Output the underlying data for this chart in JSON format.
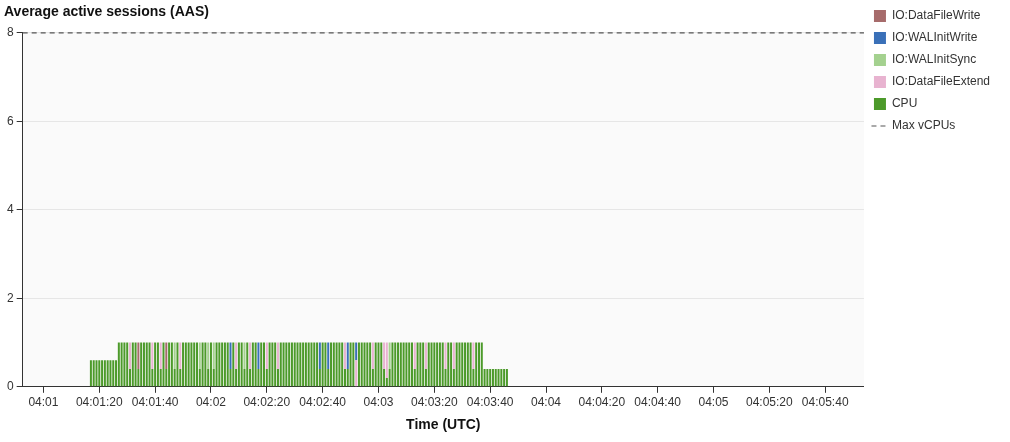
{
  "chart_data": {
    "type": "bar",
    "title": "Average active sessions (AAS)",
    "xlabel": "Time (UTC)",
    "stacked": true,
    "grid": "y",
    "legend": "right",
    "x": [
      4.021389,
      4.021667,
      4.021944,
      4.022222,
      4.0225,
      4.022778,
      4.023056,
      4.023333,
      4.023611,
      4.023889,
      4.024167,
      4.024444,
      4.024722,
      4.025,
      4.025278,
      4.025556,
      4.025833,
      4.026111,
      4.026389,
      4.026667,
      4.026944,
      4.027222,
      4.0275,
      4.027778,
      4.028056,
      4.028333,
      4.028611,
      4.028889,
      4.029167,
      4.029444,
      4.029722,
      4.03,
      4.030278,
      4.030556,
      4.030833,
      4.031111,
      4.031389,
      4.031667,
      4.031944,
      4.032222,
      4.0325,
      4.032778,
      4.033056,
      4.033333,
      4.033611,
      4.033889,
      4.034167,
      4.034444,
      4.034722,
      4.035,
      4.035278,
      4.035556,
      4.035833,
      4.036111,
      4.036389,
      4.036667,
      4.036944,
      4.037222,
      4.0375,
      4.037778,
      4.038056,
      4.038333,
      4.038611,
      4.038889,
      4.039167,
      4.039444,
      4.039722,
      4.04,
      4.040278,
      4.040556,
      4.040833,
      4.041111,
      4.041389,
      4.041667,
      4.041944,
      4.042222,
      4.0425,
      4.042778,
      4.043056,
      4.043333,
      4.043611,
      4.043889,
      4.044167,
      4.044444,
      4.044722,
      4.045,
      4.045278,
      4.045556,
      4.045833,
      4.046111,
      4.046389,
      4.046667,
      4.046944,
      4.047222,
      4.0475,
      4.047778,
      4.048056,
      4.048333,
      4.048611,
      4.048889,
      4.049167,
      4.049444,
      4.049722,
      4.05,
      4.050278,
      4.050556,
      4.050833,
      4.051111,
      4.051389,
      4.051667,
      4.051944,
      4.052222,
      4.0525,
      4.052778,
      4.053056,
      4.053333,
      4.053611,
      4.053889,
      4.054167,
      4.054444,
      4.054722,
      4.055,
      4.055278,
      4.055556,
      4.055833,
      4.056111,
      4.056389,
      4.056667,
      4.056944,
      4.057222,
      4.0575,
      4.057778,
      4.058056,
      4.058333,
      4.058611,
      4.058889,
      4.059167,
      4.059444,
      4.059722,
      4.06,
      4.060278,
      4.060556,
      4.060833,
      4.061111,
      4.061389,
      4.061667,
      4.061944,
      4.062222,
      4.0625,
      4.062778
    ],
    "xlim": [
      4.0146,
      4.0983
    ],
    "xticks": [
      {
        "value": 4.016667,
        "label": "04:01"
      },
      {
        "value": 4.022222,
        "label": "04:01:20"
      },
      {
        "value": 4.027778,
        "label": "04:01:40"
      },
      {
        "value": 4.033333,
        "label": "04:02"
      },
      {
        "value": 4.038889,
        "label": "04:02:20"
      },
      {
        "value": 4.044444,
        "label": "04:02:40"
      },
      {
        "value": 4.05,
        "label": "04:03"
      },
      {
        "value": 4.055556,
        "label": "04:03:20"
      },
      {
        "value": 4.061111,
        "label": "04:03:40"
      },
      {
        "value": 4.066667,
        "label": "04:04"
      },
      {
        "value": 4.072222,
        "label": "04:04:20"
      },
      {
        "value": 4.077778,
        "label": "04:04:40"
      },
      {
        "value": 4.083333,
        "label": "04:05"
      },
      {
        "value": 4.088889,
        "label": "04:05:20"
      },
      {
        "value": 4.094444,
        "label": "04:05:40"
      }
    ],
    "ylim": [
      0,
      8
    ],
    "yticks": [
      0,
      2,
      4,
      6,
      8
    ],
    "ref_lines": [
      {
        "axis": "y",
        "value": 8,
        "label": "Max vCPUs",
        "color": "#555555",
        "line_style": "dashed"
      }
    ],
    "series": [
      {
        "name": "CPU",
        "color": "#4c9a2a",
        "values": [
          0.6,
          0.6,
          0.6,
          0.6,
          0.6,
          0.6,
          0.6,
          0.6,
          0.6,
          0.6,
          1,
          1,
          1,
          1,
          0.4,
          1,
          1,
          0.4,
          1,
          1,
          1,
          1,
          0.4,
          1,
          1,
          0.4,
          1,
          0.4,
          1,
          1,
          0.4,
          1,
          0.4,
          1,
          1,
          1,
          1,
          1,
          1,
          0.4,
          1,
          1,
          0.4,
          1,
          0.4,
          1,
          1,
          1,
          1,
          1,
          0.4,
          1,
          0.4,
          1,
          1,
          0.4,
          1,
          0.4,
          1,
          1,
          0.4,
          1,
          1,
          0.4,
          1,
          1,
          1,
          0.4,
          1,
          1,
          1,
          1,
          1,
          1,
          1,
          1,
          1,
          1,
          1,
          1,
          1,
          1,
          0.4,
          1,
          1,
          0.4,
          1,
          1,
          1,
          1,
          1,
          0.4,
          0.4,
          1,
          1,
          null,
          1,
          1,
          1,
          1,
          1,
          0.4,
          1,
          1,
          1,
          0.4,
          0.2,
          0.4,
          1,
          1,
          1,
          1,
          1,
          1,
          1,
          1,
          0.4,
          1,
          1,
          1,
          0.4,
          1,
          1,
          1,
          1,
          1,
          1,
          0.4,
          1,
          1,
          0.4,
          1,
          1,
          1,
          1,
          1,
          1,
          0.4,
          1,
          1,
          1,
          0.4,
          0.4,
          0.4,
          0.4,
          0.4,
          0.4,
          0.4,
          0.4,
          0.4
        ]
      },
      {
        "name": "IO:DataFileExtend",
        "color": "#e8b3d0",
        "values": [
          null,
          null,
          null,
          null,
          null,
          null,
          null,
          null,
          null,
          null,
          null,
          null,
          null,
          null,
          0.6,
          null,
          null,
          null,
          null,
          null,
          null,
          null,
          0.6,
          null,
          null,
          0.6,
          null,
          null,
          null,
          null,
          null,
          null,
          0.6,
          null,
          null,
          null,
          null,
          null,
          null,
          null,
          null,
          null,
          null,
          null,
          null,
          null,
          null,
          null,
          null,
          null,
          null,
          null,
          0.6,
          null,
          null,
          null,
          null,
          0.6,
          null,
          null,
          null,
          null,
          null,
          0.6,
          null,
          null,
          null,
          0.6,
          null,
          null,
          null,
          null,
          null,
          null,
          null,
          null,
          null,
          null,
          null,
          null,
          null,
          null,
          null,
          null,
          null,
          null,
          null,
          null,
          null,
          null,
          null,
          0.6,
          null,
          null,
          null,
          0.6,
          null,
          null,
          null,
          null,
          null,
          0.6,
          null,
          null,
          null,
          0.6,
          0.8,
          null,
          null,
          null,
          null,
          null,
          null,
          null,
          null,
          null,
          0.6,
          null,
          null,
          null,
          0.6,
          null,
          null,
          null,
          null,
          null,
          null,
          0.6,
          null,
          null,
          0.6,
          null,
          null,
          null,
          null,
          null,
          null,
          0.6,
          null,
          null,
          null,
          null,
          null,
          null,
          null,
          null,
          null,
          null,
          null,
          null
        ]
      },
      {
        "name": "IO:WALInitSync",
        "color": "#a4d18f",
        "values": [
          null,
          null,
          null,
          null,
          null,
          null,
          null,
          null,
          null,
          null,
          null,
          null,
          null,
          null,
          null,
          null,
          null,
          null,
          null,
          null,
          null,
          null,
          null,
          null,
          null,
          null,
          null,
          null,
          null,
          null,
          0.6,
          null,
          null,
          null,
          null,
          null,
          null,
          null,
          null,
          0.6,
          null,
          null,
          0.6,
          null,
          0.6,
          null,
          null,
          null,
          null,
          null,
          null,
          null,
          null,
          null,
          null,
          0.6,
          null,
          null,
          null,
          null,
          null,
          null,
          null,
          null,
          null,
          null,
          null,
          null,
          null,
          null,
          null,
          null,
          null,
          null,
          null,
          null,
          null,
          null,
          null,
          null,
          null,
          null,
          null,
          null,
          null,
          null,
          null,
          null,
          null,
          null,
          null,
          null,
          null,
          null,
          null,
          null,
          null,
          null,
          null,
          null,
          null,
          null,
          null,
          null,
          null,
          null,
          null,
          0.6,
          null,
          null,
          null,
          null,
          null,
          null,
          null,
          null,
          null,
          null,
          null,
          null,
          null,
          null,
          null,
          null,
          null,
          null,
          null,
          null,
          null,
          null,
          null,
          null,
          null,
          null,
          null,
          null,
          null,
          null,
          null,
          null,
          null,
          null,
          null,
          null,
          null,
          null,
          null,
          null,
          null,
          null
        ]
      },
      {
        "name": "IO:WALInitWrite",
        "color": "#3a70b8",
        "values": [
          null,
          null,
          null,
          null,
          null,
          null,
          null,
          null,
          null,
          null,
          null,
          null,
          null,
          null,
          null,
          null,
          null,
          null,
          null,
          null,
          null,
          null,
          null,
          null,
          null,
          null,
          null,
          null,
          null,
          null,
          null,
          null,
          null,
          null,
          null,
          null,
          null,
          null,
          null,
          null,
          null,
          null,
          null,
          null,
          null,
          null,
          null,
          null,
          null,
          null,
          0.6,
          null,
          null,
          null,
          null,
          null,
          null,
          null,
          null,
          null,
          0.6,
          null,
          null,
          null,
          null,
          null,
          null,
          null,
          null,
          null,
          null,
          null,
          null,
          null,
          null,
          null,
          null,
          null,
          null,
          null,
          null,
          null,
          0.6,
          null,
          null,
          0.6,
          null,
          null,
          null,
          null,
          null,
          null,
          0.6,
          null,
          null,
          0.4,
          null,
          null,
          null,
          null,
          null,
          null,
          null,
          null,
          null,
          null,
          null,
          null,
          null,
          null,
          null,
          null,
          null,
          null,
          null,
          null,
          null,
          null,
          null,
          null,
          null,
          null,
          null,
          null,
          null,
          null,
          null,
          null,
          null,
          null,
          null,
          null,
          null,
          null,
          null,
          null,
          null,
          null,
          null,
          null,
          null,
          null,
          null,
          null,
          null,
          null,
          null,
          null,
          null,
          null
        ]
      },
      {
        "name": "IO:DataFileWrite",
        "color": "#a66b6b",
        "values": [
          null,
          null,
          null,
          null,
          null,
          null,
          null,
          null,
          null,
          null,
          null,
          null,
          null,
          null,
          null,
          null,
          null,
          0.6,
          null,
          null,
          null,
          null,
          null,
          null,
          null,
          null,
          null,
          0.6,
          null,
          null,
          null,
          null,
          null,
          null,
          null,
          null,
          null,
          null,
          null,
          null,
          null,
          null,
          null,
          null,
          null,
          null,
          null,
          null,
          null,
          null,
          null,
          null,
          null,
          null,
          null,
          null,
          null,
          null,
          null,
          null,
          null,
          null,
          null,
          null,
          null,
          null,
          null,
          null,
          null,
          null,
          null,
          null,
          null,
          null,
          null,
          null,
          null,
          null,
          null,
          null,
          null,
          null,
          null,
          null,
          null,
          null,
          null,
          null,
          null,
          null,
          null,
          null,
          null,
          null,
          null,
          null,
          null,
          null,
          null,
          null,
          null,
          null,
          null,
          null,
          null,
          null,
          null,
          null,
          null,
          null,
          null,
          null,
          null,
          null,
          null,
          null,
          null,
          null,
          null,
          null,
          null,
          null,
          null,
          null,
          null,
          null,
          null,
          null,
          null,
          null,
          null,
          null,
          null,
          null,
          null,
          null,
          null,
          null,
          null,
          null,
          null,
          null,
          null,
          null,
          null,
          null,
          null,
          null,
          null,
          null
        ]
      }
    ]
  }
}
